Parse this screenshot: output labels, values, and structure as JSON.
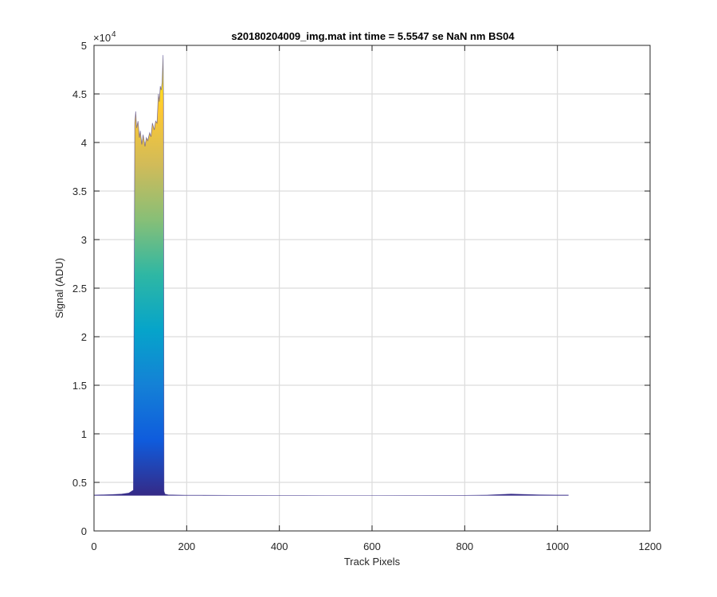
{
  "chart_data": {
    "type": "area",
    "title": "s20180204009_img.mat int time = 5.5547 se  NaN nm BS04",
    "xlabel": "Track Pixels",
    "ylabel": "Signal (ADU)",
    "xlim": [
      0,
      1200
    ],
    "ylim": [
      0,
      50000
    ],
    "y_exponent_label": "×10",
    "y_exponent_power": "4",
    "x_ticks": [
      0,
      200,
      400,
      600,
      800,
      1000,
      1200
    ],
    "x_tick_labels": [
      "0",
      "200",
      "400",
      "600",
      "800",
      "1000",
      "1200"
    ],
    "y_ticks": [
      0,
      5000,
      10000,
      15000,
      20000,
      25000,
      30000,
      35000,
      40000,
      45000,
      50000
    ],
    "y_tick_labels": [
      "0",
      "0.5",
      "1",
      "1.5",
      "2",
      "2.5",
      "3",
      "3.5",
      "4",
      "4.5",
      "5"
    ],
    "grid": true,
    "colormap": "parula",
    "colormap_stops": [
      "#352a87",
      "#0f5cdd",
      "#1481d6",
      "#06a4ca",
      "#2eb7a4",
      "#87bf77",
      "#d1bb59",
      "#fec832",
      "#f9fb0e"
    ],
    "series": [
      {
        "x": [
          0,
          20,
          40,
          60,
          75,
          85,
          88,
          90,
          92,
          95,
          98,
          100,
          103,
          106,
          110,
          113,
          116,
          120,
          123,
          126,
          130,
          133,
          136,
          139,
          141,
          143,
          145,
          147,
          149,
          150,
          151,
          153,
          160,
          200,
          300,
          400,
          500,
          600,
          700,
          800,
          850,
          880,
          900,
          930,
          960,
          1000,
          1024
        ],
        "y": [
          3700,
          3720,
          3750,
          3800,
          3900,
          4200,
          42000,
          43200,
          41500,
          42200,
          40500,
          41200,
          39800,
          40800,
          39600,
          40500,
          40200,
          41000,
          40600,
          42000,
          41300,
          42200,
          42000,
          45000,
          44200,
          45800,
          45400,
          46200,
          49000,
          44500,
          4100,
          3800,
          3720,
          3680,
          3660,
          3650,
          3640,
          3640,
          3650,
          3660,
          3700,
          3760,
          3800,
          3760,
          3720,
          3700,
          3700
        ]
      }
    ]
  }
}
